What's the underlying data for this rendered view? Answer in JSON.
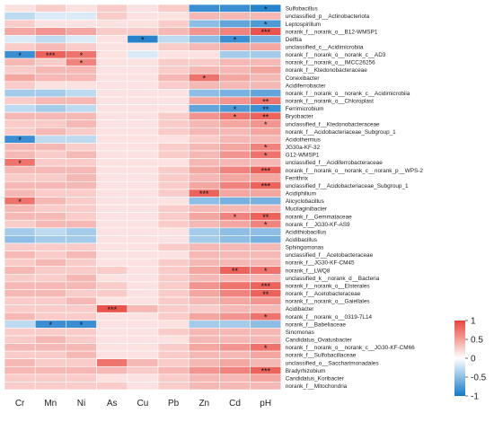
{
  "chart_data": {
    "type": "heatmap",
    "title": "",
    "x_labels": [
      "Cr",
      "Mn",
      "Ni",
      "As",
      "Cu",
      "Pb",
      "Zn",
      "Cd",
      "pH"
    ],
    "y_labels": [
      "Sulfobacillus",
      "unclassified_p__Actinobacteriota",
      "Leptospirillum",
      "norank_f__norank_o__B12-WMSP1",
      "Delftia",
      "unclassified_c__Acidimicrobiia",
      "norank_f__norank_o__norank_c__AD3",
      "norank_f__norank_o__IMCC26256",
      "norank_f__Ktedonobacteraceae",
      "Conexibacter",
      "Acidiferrobacter",
      "norank_f__norank_o__norank_c__Acidimicrobiia",
      "norank_f__norank_o__Chloroplast",
      "Ferrimicrobium",
      "Bryobacter",
      "unclassified_f__Ktedonobacteraceae",
      "norank_f__Acidobacteriaceae_Subgroup_1",
      "Acidothermus",
      "JG30a-KF-32",
      "G12-WMSP1",
      "unclassified_f__Acidiferrobacteraceae",
      "norank_f__norank_o__norank_c__norank_p__WPS-2",
      "Ferrithrix",
      "unclassified_f__Acidobacteriaceae_Subgroup_1",
      "Acidiphilium",
      "Alicyclobacillus",
      "Mucilaginibacter",
      "norank_f__Gemmataceae",
      "norank_f__JG30-KF-AS9",
      "Acidithiobacillus",
      "Acidibacillus",
      "Sphingomonas",
      "unclassified_f__Acetobacteraceae",
      "norank_f__JG30-KF-CM45",
      "norank_f__LWQ8",
      "unclassified_k__norank_d__Bacteria",
      "norank_f__norank_o__Elsterales",
      "norank_f__Acetobacteraceae",
      "norank_f__norank_o__Gaiellales",
      "Acidibacter",
      "norank_f__norank_o__0319-7L14",
      "norank_f__Babeliaceae",
      "Sinomonas",
      "Candidatus_Ovatusbacter",
      "norank_f__norank_o__norank_c__JG30-KF-CM66",
      "norank_f__Sulfobacillaceae",
      "unclassified_o__Saccharimonadales",
      "Bradyrhizobium",
      "Candidatus_Koribacter",
      "norank_f__Mitochondria"
    ],
    "values": [
      [
        0.1,
        0.2,
        0.1,
        0.2,
        0.1,
        0.2,
        -0.8,
        -0.8,
        -0.9
      ],
      [
        -0.2,
        -0.1,
        -0.1,
        0.2,
        0.1,
        0.1,
        0.3,
        0.3,
        0.3
      ],
      [
        0.2,
        0.1,
        0.1,
        0.1,
        0.1,
        0.2,
        -0.4,
        -0.6,
        -0.7
      ],
      [
        0.4,
        0.5,
        0.4,
        0.2,
        0.2,
        0.3,
        0.5,
        0.6,
        0.9
      ],
      [
        -0.1,
        -0.2,
        -0.1,
        0.1,
        -0.9,
        -0.2,
        -0.4,
        -0.8,
        -0.5
      ],
      [
        0.2,
        0.3,
        0.2,
        0.1,
        0.1,
        0.2,
        0.3,
        0.4,
        0.4
      ],
      [
        -0.8,
        0.8,
        0.7,
        0.1,
        -0.1,
        0.1,
        0.1,
        -0.3,
        -0.3
      ],
      [
        0.3,
        0.2,
        0.6,
        0.1,
        0.1,
        0.2,
        0.2,
        0.3,
        0.3
      ],
      [
        0.2,
        0.3,
        0.3,
        0.1,
        0.1,
        0.2,
        0.3,
        0.3,
        0.4
      ],
      [
        0.4,
        0.3,
        0.3,
        0.1,
        0.1,
        0.3,
        0.7,
        0.4,
        0.3
      ],
      [
        0.2,
        0.1,
        0.1,
        0.1,
        0.1,
        0.2,
        0.3,
        0.3,
        0.3
      ],
      [
        -0.3,
        -0.3,
        -0.2,
        0.1,
        0.1,
        0.1,
        -0.4,
        -0.5,
        -0.6
      ],
      [
        0.2,
        0.3,
        0.3,
        0.1,
        0.1,
        0.1,
        0.4,
        0.5,
        0.7
      ],
      [
        -0.2,
        -0.3,
        -0.2,
        0.1,
        0.1,
        0.1,
        -0.6,
        -0.7,
        -0.8
      ],
      [
        0.3,
        0.3,
        0.3,
        0.1,
        0.1,
        0.2,
        0.5,
        0.7,
        0.8
      ],
      [
        0.2,
        0.2,
        0.3,
        0.1,
        0.1,
        0.2,
        0.3,
        0.4,
        0.5
      ],
      [
        0.2,
        0.3,
        0.2,
        0.1,
        0.1,
        0.2,
        0.3,
        0.3,
        0.4
      ],
      [
        -0.8,
        -0.2,
        -0.2,
        0.1,
        0.1,
        0.1,
        0.2,
        0.3,
        0.3
      ],
      [
        0.3,
        0.3,
        0.2,
        0.1,
        0.1,
        0.2,
        0.3,
        0.4,
        0.6
      ],
      [
        0.3,
        0.2,
        0.3,
        0.1,
        0.1,
        0.2,
        0.3,
        0.5,
        0.7
      ],
      [
        0.7,
        0.2,
        0.2,
        0.1,
        0.1,
        0.1,
        0.3,
        0.3,
        0.3
      ],
      [
        0.3,
        0.3,
        0.3,
        0.1,
        0.1,
        0.2,
        0.4,
        0.6,
        0.8
      ],
      [
        0.2,
        0.2,
        0.3,
        0.1,
        0.1,
        0.2,
        0.3,
        0.4,
        0.4
      ],
      [
        0.3,
        0.3,
        0.3,
        0.1,
        0.1,
        0.2,
        0.4,
        0.6,
        0.8
      ],
      [
        0.3,
        0.2,
        0.2,
        0.1,
        0.1,
        0.2,
        0.8,
        0.4,
        0.4
      ],
      [
        0.7,
        0.3,
        0.2,
        0.1,
        0.1,
        0.1,
        -0.4,
        -0.5,
        -0.5
      ],
      [
        0.3,
        0.2,
        0.2,
        0.1,
        0.1,
        0.2,
        0.3,
        0.3,
        0.3
      ],
      [
        0.3,
        0.3,
        0.2,
        0.1,
        0.1,
        0.2,
        0.4,
        0.6,
        0.8
      ],
      [
        0.2,
        0.3,
        0.3,
        0.1,
        0.1,
        0.2,
        0.3,
        0.4,
        0.6
      ],
      [
        -0.3,
        -0.2,
        -0.3,
        0.1,
        0.1,
        0.1,
        -0.3,
        -0.4,
        -0.4
      ],
      [
        -0.4,
        -0.3,
        -0.3,
        0.1,
        0.1,
        0.1,
        -0.3,
        -0.4,
        -0.5
      ],
      [
        0.2,
        0.2,
        0.2,
        0.1,
        0.1,
        0.2,
        0.3,
        0.3,
        0.3
      ],
      [
        0.3,
        0.2,
        0.3,
        0.1,
        0.1,
        0.1,
        0.3,
        0.3,
        0.3
      ],
      [
        0.2,
        0.3,
        0.2,
        0.1,
        0.1,
        0.2,
        0.3,
        0.3,
        0.3
      ],
      [
        0.3,
        0.2,
        0.2,
        0.2,
        0.1,
        0.2,
        0.4,
        0.8,
        0.7
      ],
      [
        0.2,
        0.2,
        0.3,
        0.1,
        0.1,
        0.2,
        0.3,
        0.3,
        0.3
      ],
      [
        0.3,
        0.3,
        0.3,
        0.2,
        0.1,
        0.2,
        0.5,
        0.7,
        0.8
      ],
      [
        0.3,
        0.3,
        0.2,
        0.2,
        0.1,
        0.2,
        0.4,
        0.6,
        0.8
      ],
      [
        0.2,
        0.2,
        0.3,
        0.1,
        0.1,
        0.2,
        0.3,
        0.4,
        0.5
      ],
      [
        0.2,
        0.2,
        0.2,
        0.9,
        0.3,
        0.2,
        0.2,
        0.3,
        0.3
      ],
      [
        0.3,
        0.2,
        0.2,
        0.1,
        0.1,
        0.2,
        0.4,
        0.5,
        0.7
      ],
      [
        -0.2,
        -0.8,
        -0.8,
        0.1,
        0.1,
        0.1,
        -0.3,
        -0.3,
        -0.4
      ],
      [
        0.2,
        0.2,
        0.2,
        0.1,
        0.1,
        0.2,
        0.3,
        0.3,
        0.3
      ],
      [
        0.2,
        0.3,
        0.2,
        0.1,
        0.1,
        0.1,
        0.3,
        0.3,
        0.3
      ],
      [
        0.3,
        0.3,
        0.3,
        0.1,
        0.1,
        0.2,
        0.4,
        0.5,
        0.7
      ],
      [
        0.2,
        0.2,
        0.3,
        0.1,
        0.1,
        0.2,
        0.3,
        0.3,
        0.4
      ],
      [
        0.3,
        0.2,
        0.2,
        0.7,
        0.3,
        0.2,
        0.3,
        0.4,
        0.3
      ],
      [
        0.3,
        0.3,
        0.3,
        0.3,
        0.2,
        0.3,
        0.5,
        0.6,
        0.8
      ],
      [
        0.2,
        0.2,
        0.2,
        0.1,
        0.1,
        0.2,
        0.3,
        0.3,
        0.4
      ],
      [
        0.2,
        0.2,
        0.2,
        0.2,
        0.1,
        0.2,
        0.3,
        0.3,
        0.3
      ]
    ],
    "significance": [
      [
        "",
        "",
        "",
        "",
        "",
        "",
        "",
        "",
        "*"
      ],
      [
        "",
        "",
        "",
        "",
        "",
        "",
        "",
        "",
        ""
      ],
      [
        "",
        "",
        "",
        "",
        "",
        "",
        "",
        "",
        "*"
      ],
      [
        "",
        "",
        "",
        "",
        "",
        "",
        "",
        "",
        "***"
      ],
      [
        "",
        "",
        "",
        "",
        "*",
        "",
        "",
        "*",
        ""
      ],
      [
        "",
        "",
        "",
        "",
        "",
        "",
        "",
        "",
        ""
      ],
      [
        "*",
        "***",
        "*",
        "",
        "",
        "",
        "",
        "",
        ""
      ],
      [
        "",
        "",
        "*",
        "",
        "",
        "",
        "",
        "",
        ""
      ],
      [
        "",
        "",
        "",
        "",
        "",
        "",
        "",
        "",
        ""
      ],
      [
        "",
        "",
        "",
        "",
        "",
        "",
        "*",
        "",
        ""
      ],
      [
        "",
        "",
        "",
        "",
        "",
        "",
        "",
        "",
        ""
      ],
      [
        "",
        "",
        "",
        "",
        "",
        "",
        "",
        "",
        ""
      ],
      [
        "",
        "",
        "",
        "",
        "",
        "",
        "",
        "",
        "**"
      ],
      [
        "",
        "",
        "",
        "",
        "",
        "",
        "",
        "*",
        "**"
      ],
      [
        "",
        "",
        "",
        "",
        "",
        "",
        "",
        "*",
        "**"
      ],
      [
        "",
        "",
        "",
        "",
        "",
        "",
        "",
        "",
        "*"
      ],
      [
        "",
        "",
        "",
        "",
        "",
        "",
        "",
        "",
        ""
      ],
      [
        "*",
        "",
        "",
        "",
        "",
        "",
        "",
        "",
        ""
      ],
      [
        "",
        "",
        "",
        "",
        "",
        "",
        "",
        "",
        "*"
      ],
      [
        "",
        "",
        "",
        "",
        "",
        "",
        "",
        "",
        "*"
      ],
      [
        "*",
        "",
        "",
        "",
        "",
        "",
        "",
        "",
        ""
      ],
      [
        "",
        "",
        "",
        "",
        "",
        "",
        "",
        "",
        "***"
      ],
      [
        "",
        "",
        "",
        "",
        "",
        "",
        "",
        "",
        ""
      ],
      [
        "",
        "",
        "",
        "",
        "",
        "",
        "",
        "",
        "***"
      ],
      [
        "",
        "",
        "",
        "",
        "",
        "",
        "***",
        "",
        ""
      ],
      [
        "*",
        "",
        "",
        "",
        "",
        "",
        "",
        "",
        ""
      ],
      [
        "",
        "",
        "",
        "",
        "",
        "",
        "",
        "",
        ""
      ],
      [
        "",
        "",
        "",
        "",
        "",
        "",
        "",
        "*",
        "**"
      ],
      [
        "",
        "",
        "",
        "",
        "",
        "",
        "",
        "",
        "*"
      ],
      [
        "",
        "",
        "",
        "",
        "",
        "",
        "",
        "",
        ""
      ],
      [
        "",
        "",
        "",
        "",
        "",
        "",
        "",
        "",
        ""
      ],
      [
        "",
        "",
        "",
        "",
        "",
        "",
        "",
        "",
        ""
      ],
      [
        "",
        "",
        "",
        "",
        "",
        "",
        "",
        "",
        ""
      ],
      [
        "",
        "",
        "",
        "",
        "",
        "",
        "",
        "",
        ""
      ],
      [
        "",
        "",
        "",
        "",
        "",
        "",
        "",
        "**",
        "*"
      ],
      [
        "",
        "",
        "",
        "",
        "",
        "",
        "",
        "",
        ""
      ],
      [
        "",
        "",
        "",
        "",
        "",
        "",
        "",
        "",
        "***"
      ],
      [
        "",
        "",
        "",
        "",
        "",
        "",
        "",
        "",
        "**"
      ],
      [
        "",
        "",
        "",
        "",
        "",
        "",
        "",
        "",
        ""
      ],
      [
        "",
        "",
        "",
        "***",
        "",
        "",
        "",
        "",
        ""
      ],
      [
        "",
        "",
        "",
        "",
        "",
        "",
        "",
        "",
        "*"
      ],
      [
        "",
        "*",
        "*",
        "",
        "",
        "",
        "",
        "",
        ""
      ],
      [
        "",
        "",
        "",
        "",
        "",
        "",
        "",
        "",
        ""
      ],
      [
        "",
        "",
        "",
        "",
        "",
        "",
        "",
        "",
        ""
      ],
      [
        "",
        "",
        "",
        "",
        "",
        "",
        "",
        "",
        "*"
      ],
      [
        "",
        "",
        "",
        "",
        "",
        "",
        "",
        "",
        ""
      ],
      [
        "",
        "",
        "",
        "",
        "",
        "",
        "",
        "",
        ""
      ],
      [
        "",
        "",
        "",
        "",
        "",
        "",
        "",
        "",
        "***"
      ],
      [
        "",
        "",
        "",
        "",
        "",
        "",
        "",
        "",
        ""
      ],
      [
        "",
        "",
        "",
        "",
        "",
        "",
        "",
        "",
        ""
      ]
    ],
    "value_range": [
      -1,
      1
    ],
    "colorbar": {
      "ticks": [
        1,
        0.5,
        0,
        -0.5,
        -1
      ],
      "tick_labels": [
        "1",
        "0.5",
        "0",
        "-0.5",
        "-1"
      ],
      "colors": {
        "high": "#e8453c",
        "mid": "#ffffff",
        "low": "#1478c8"
      }
    },
    "grid": true,
    "legend_position": "right"
  }
}
